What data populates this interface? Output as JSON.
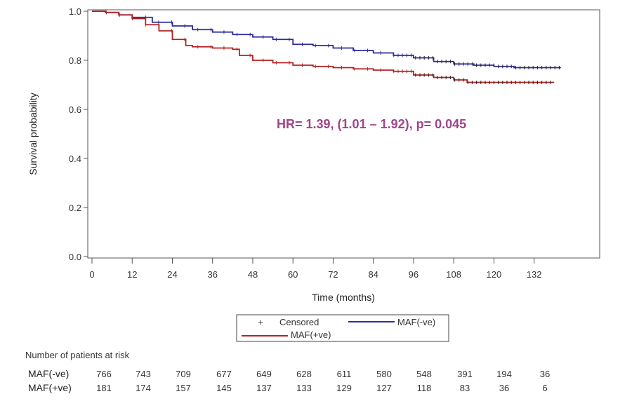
{
  "chart_data": {
    "type": "line",
    "title": "",
    "xlabel": "Time (months)",
    "ylabel": "Survival probability",
    "xlim": [
      0,
      144
    ],
    "ylim": [
      0.0,
      1.0
    ],
    "x_ticks": [
      0,
      12,
      24,
      36,
      48,
      60,
      72,
      84,
      96,
      108,
      120,
      132
    ],
    "y_ticks": [
      "0.0",
      "0.2",
      "0.4",
      "0.6",
      "0.8",
      "1.0"
    ],
    "grid": false,
    "annotation": "HR= 1.39, (1.01 – 1.92), p= 0.045",
    "legend": {
      "placement": "bottom",
      "censored_label": "Censored",
      "censored_symbol": "+"
    },
    "series": [
      {
        "name": "MAF(-ve)",
        "color": "#2b2b9e",
        "x": [
          0,
          4,
          8,
          12,
          18,
          24,
          30,
          36,
          42,
          48,
          54,
          60,
          66,
          72,
          78,
          84,
          90,
          96,
          102,
          108,
          114,
          120,
          126,
          132,
          140
        ],
        "y": [
          1.0,
          0.995,
          0.985,
          0.975,
          0.955,
          0.94,
          0.925,
          0.915,
          0.905,
          0.895,
          0.885,
          0.865,
          0.86,
          0.85,
          0.84,
          0.83,
          0.82,
          0.81,
          0.795,
          0.785,
          0.78,
          0.775,
          0.77,
          0.77,
          0.77
        ]
      },
      {
        "name": "MAF(+ve)",
        "color": "#b22222",
        "x": [
          0,
          4,
          8,
          12,
          16,
          20,
          24,
          28,
          30,
          36,
          42,
          44,
          48,
          54,
          60,
          66,
          72,
          78,
          84,
          90,
          96,
          102,
          108,
          112,
          120,
          132,
          138
        ],
        "y": [
          1.0,
          0.995,
          0.985,
          0.97,
          0.945,
          0.92,
          0.885,
          0.86,
          0.855,
          0.85,
          0.845,
          0.82,
          0.8,
          0.79,
          0.78,
          0.775,
          0.77,
          0.765,
          0.76,
          0.755,
          0.74,
          0.73,
          0.72,
          0.71,
          0.71,
          0.71,
          0.71
        ]
      }
    ]
  },
  "risk_table": {
    "title": "Number of patients at risk",
    "rows": [
      {
        "label": "MAF(-ve)",
        "values": [
          "766",
          "743",
          "709",
          "677",
          "649",
          "628",
          "611",
          "580",
          "548",
          "391",
          "194",
          "36"
        ]
      },
      {
        "label": "MAF(+ve)",
        "values": [
          "181",
          "174",
          "157",
          "145",
          "137",
          "133",
          "129",
          "127",
          "118",
          "83",
          "36",
          "6"
        ]
      }
    ]
  }
}
